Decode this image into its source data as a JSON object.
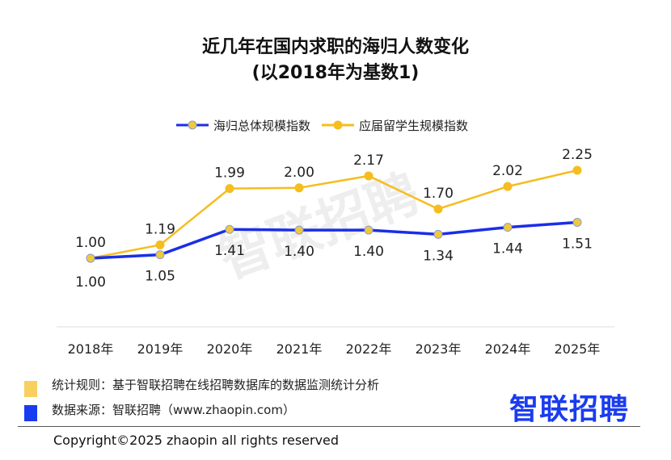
{
  "chart_data": {
    "type": "line",
    "title": [
      "近几年在国内求职的海归人数变化",
      "(以2018年为基数1)"
    ],
    "categories": [
      "2018年",
      "2019年",
      "2020年",
      "2021年",
      "2022年",
      "2023年",
      "2024年",
      "2025年"
    ],
    "series": [
      {
        "name": "海归总体规模指数",
        "values": [
          1.0,
          1.05,
          1.41,
          1.4,
          1.4,
          1.34,
          1.44,
          1.51
        ],
        "color": "#1a2ee8",
        "marker": "#f0c93a",
        "label_pos": "below"
      },
      {
        "name": "应届留学生规模指数",
        "values": [
          1.0,
          1.19,
          1.99,
          2.0,
          2.17,
          1.7,
          2.02,
          2.25
        ],
        "color": "#f5bd1f",
        "marker": "#f5bd1f",
        "label_pos": "above"
      }
    ],
    "legend": "top-center",
    "grid": false
  },
  "watermark": "智联招聘",
  "notes": [
    {
      "text": "统计规则：基于智联招聘在线招聘数据库的数据监测统计分析",
      "color": "#f7d060"
    },
    {
      "text": "数据来源：智联招聘（www.zhaopin.com）",
      "color": "#1a3cf0"
    }
  ],
  "logo": "智联招聘",
  "copyright": "Copyright©2025 zhaopin all rights reserved"
}
